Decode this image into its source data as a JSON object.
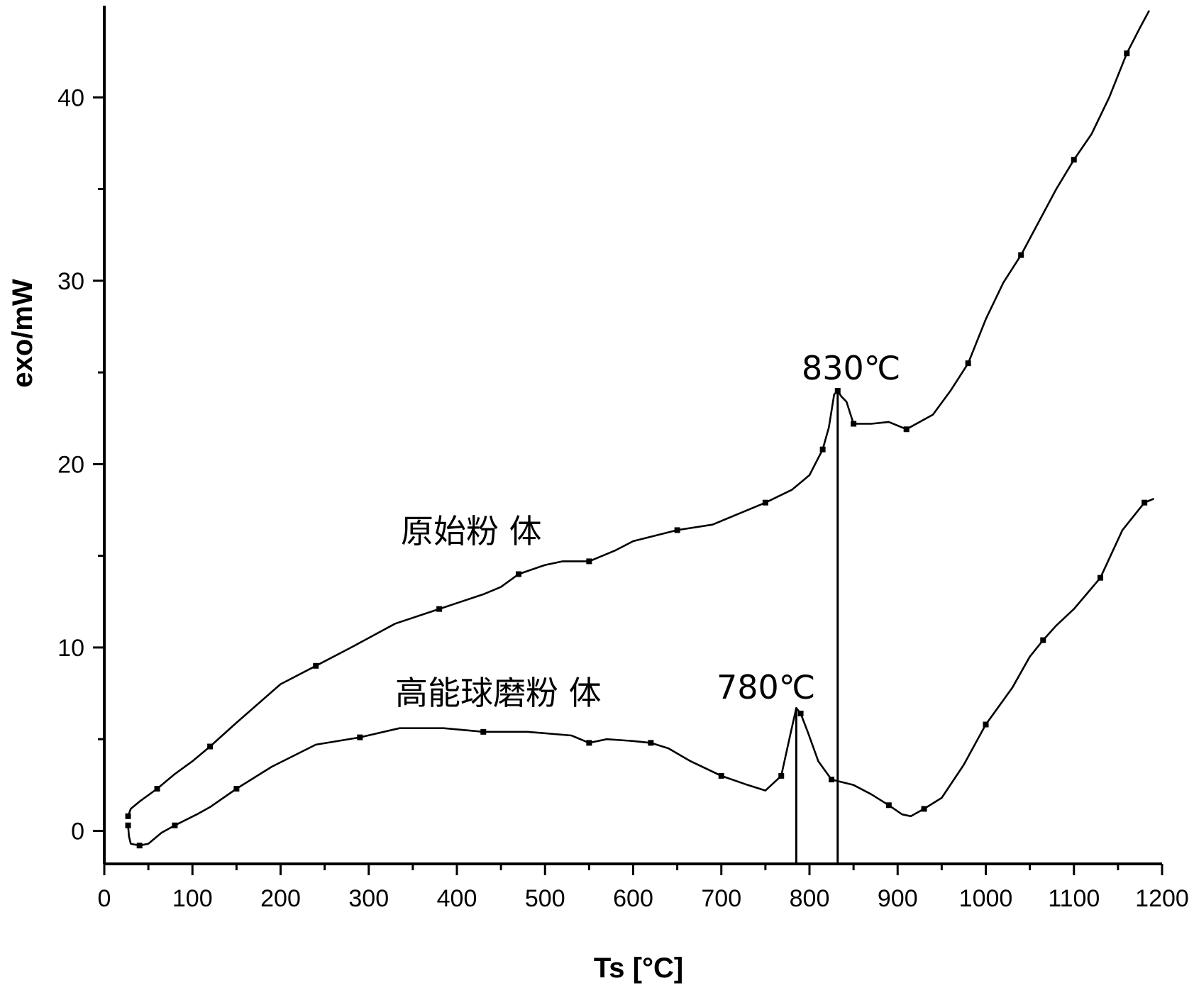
{
  "chart_data": {
    "type": "line",
    "xlabel": "Ts [°C]",
    "ylabel": "exo/mW",
    "xlim": [
      0,
      1200
    ],
    "ylim": [
      -1.8,
      45
    ],
    "x_ticks": [
      0,
      100,
      200,
      300,
      400,
      500,
      600,
      700,
      800,
      900,
      1000,
      1100,
      1200
    ],
    "y_ticks": [
      0,
      10,
      20,
      30,
      40
    ],
    "grid": false,
    "legend": "none",
    "series": [
      {
        "name": "原始粉 体",
        "points": [
          [
            27,
            0.8
          ],
          [
            30,
            1.2
          ],
          [
            40,
            1.6
          ],
          [
            60,
            2.3
          ],
          [
            80,
            3.1
          ],
          [
            100,
            3.8
          ],
          [
            120,
            4.6
          ],
          [
            150,
            5.9
          ],
          [
            200,
            8.0
          ],
          [
            240,
            9.0
          ],
          [
            280,
            10.0
          ],
          [
            330,
            11.3
          ],
          [
            380,
            12.1
          ],
          [
            430,
            12.9
          ],
          [
            450,
            13.3
          ],
          [
            470,
            14.0
          ],
          [
            500,
            14.5
          ],
          [
            520,
            14.7
          ],
          [
            550,
            14.7
          ],
          [
            580,
            15.3
          ],
          [
            600,
            15.8
          ],
          [
            650,
            16.4
          ],
          [
            690,
            16.7
          ],
          [
            720,
            17.3
          ],
          [
            750,
            17.9
          ],
          [
            780,
            18.6
          ],
          [
            800,
            19.4
          ],
          [
            815,
            20.8
          ],
          [
            822,
            22.0
          ],
          [
            828,
            23.8
          ],
          [
            832,
            24.0
          ],
          [
            836,
            23.7
          ],
          [
            842,
            23.4
          ],
          [
            850,
            22.2
          ],
          [
            870,
            22.2
          ],
          [
            890,
            22.3
          ],
          [
            910,
            21.9
          ],
          [
            940,
            22.7
          ],
          [
            960,
            24.0
          ],
          [
            980,
            25.5
          ],
          [
            1000,
            27.9
          ],
          [
            1020,
            29.9
          ],
          [
            1040,
            31.4
          ],
          [
            1060,
            33.2
          ],
          [
            1080,
            35.0
          ],
          [
            1100,
            36.6
          ],
          [
            1120,
            38.0
          ],
          [
            1140,
            40.0
          ],
          [
            1160,
            42.4
          ],
          [
            1175,
            43.8
          ],
          [
            1185,
            44.7
          ]
        ],
        "annotation": "830℃"
      },
      {
        "name": "高能球磨粉 体",
        "points": [
          [
            27,
            0.3
          ],
          [
            28,
            -0.3
          ],
          [
            30,
            -0.7
          ],
          [
            40,
            -0.8
          ],
          [
            50,
            -0.7
          ],
          [
            65,
            -0.1
          ],
          [
            80,
            0.3
          ],
          [
            105,
            0.9
          ],
          [
            120,
            1.3
          ],
          [
            150,
            2.3
          ],
          [
            190,
            3.5
          ],
          [
            240,
            4.7
          ],
          [
            290,
            5.1
          ],
          [
            335,
            5.6
          ],
          [
            385,
            5.6
          ],
          [
            430,
            5.4
          ],
          [
            480,
            5.4
          ],
          [
            530,
            5.2
          ],
          [
            550,
            4.8
          ],
          [
            570,
            5.0
          ],
          [
            600,
            4.9
          ],
          [
            620,
            4.8
          ],
          [
            640,
            4.5
          ],
          [
            665,
            3.8
          ],
          [
            700,
            3.0
          ],
          [
            730,
            2.5
          ],
          [
            750,
            2.2
          ],
          [
            768,
            3.0
          ],
          [
            778,
            5.2
          ],
          [
            785,
            6.7
          ],
          [
            790,
            6.4
          ],
          [
            798,
            5.4
          ],
          [
            810,
            3.8
          ],
          [
            825,
            2.8
          ],
          [
            850,
            2.5
          ],
          [
            870,
            2.0
          ],
          [
            890,
            1.4
          ],
          [
            905,
            0.9
          ],
          [
            915,
            0.8
          ],
          [
            930,
            1.2
          ],
          [
            950,
            1.8
          ],
          [
            975,
            3.6
          ],
          [
            1000,
            5.8
          ],
          [
            1030,
            7.8
          ],
          [
            1050,
            9.5
          ],
          [
            1065,
            10.4
          ],
          [
            1080,
            11.2
          ],
          [
            1100,
            12.1
          ],
          [
            1130,
            13.8
          ],
          [
            1155,
            16.4
          ],
          [
            1170,
            17.3
          ],
          [
            1180,
            17.9
          ],
          [
            1190,
            18.1
          ]
        ],
        "annotation": "780℃"
      }
    ],
    "peak_markers": [
      {
        "x": 785,
        "y_top": 6.7,
        "label": "780℃"
      },
      {
        "x": 832,
        "y_top": 24.0,
        "label": "830℃"
      }
    ]
  }
}
